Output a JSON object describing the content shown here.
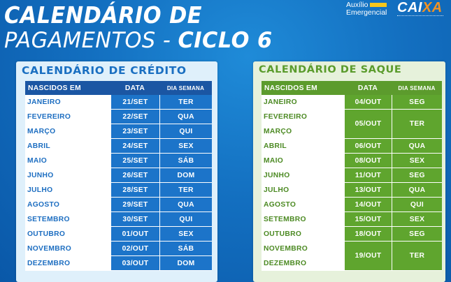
{
  "header": {
    "title_line1": "CALENDÁRIO DE",
    "title_line2_prefix": "PAGAMENTOS -",
    "title_line2_cycle": "CICLO 6"
  },
  "logos": {
    "auxilio_line1": "Auxílio",
    "auxilio_line2": "Emergencial",
    "caixa_part1": "CAI",
    "caixa_part2": "XA"
  },
  "credit": {
    "title": "CALENDÁRIO DE CRÉDITO",
    "columns": [
      "NASCIDOS EM",
      "DATA",
      "DIA SEMANA"
    ],
    "rows": [
      {
        "month": "JANEIRO",
        "date": "21/SET",
        "day": "TER"
      },
      {
        "month": "FEVEREIRO",
        "date": "22/SET",
        "day": "QUA"
      },
      {
        "month": "MARÇO",
        "date": "23/SET",
        "day": "QUI"
      },
      {
        "month": "ABRIL",
        "date": "24/SET",
        "day": "SEX"
      },
      {
        "month": "MAIO",
        "date": "25/SET",
        "day": "SÁB"
      },
      {
        "month": "JUNHO",
        "date": "26/SET",
        "day": "DOM"
      },
      {
        "month": "JULHO",
        "date": "28/SET",
        "day": "TER"
      },
      {
        "month": "AGOSTO",
        "date": "29/SET",
        "day": "QUA"
      },
      {
        "month": "SETEMBRO",
        "date": "30/SET",
        "day": "QUI"
      },
      {
        "month": "OUTUBRO",
        "date": "01/OUT",
        "day": "SEX"
      },
      {
        "month": "NOVEMBRO",
        "date": "02/OUT",
        "day": "SÁB"
      },
      {
        "month": "DEZEMBRO",
        "date": "03/OUT",
        "day": "DOM"
      }
    ]
  },
  "saque": {
    "title": "CALENDÁRIO DE SAQUE",
    "columns": [
      "NASCIDOS EM",
      "DATA",
      "DIA SEMANA"
    ],
    "rows": [
      {
        "month": "JANEIRO",
        "date": "04/OUT",
        "day": "SEG"
      },
      {
        "month": "FEVEREIRO",
        "date": "05/OUT",
        "day": "TER"
      },
      {
        "month": "MARÇO"
      },
      {
        "month": "ABRIL",
        "date": "06/OUT",
        "day": "QUA"
      },
      {
        "month": "MAIO",
        "date": "08/OUT",
        "day": "SEX"
      },
      {
        "month": "JUNHO",
        "date": "11/OUT",
        "day": "SEG"
      },
      {
        "month": "JULHO",
        "date": "13/OUT",
        "day": "QUA"
      },
      {
        "month": "AGOSTO",
        "date": "14/OUT",
        "day": "QUI"
      },
      {
        "month": "SETEMBRO",
        "date": "15/OUT",
        "day": "SEX"
      },
      {
        "month": "OUTUBRO",
        "date": "18/OUT",
        "day": "SEG"
      },
      {
        "month": "NOVEMBRO",
        "date": "19/OUT",
        "day": "TER"
      },
      {
        "month": "DEZEMBRO"
      }
    ]
  }
}
